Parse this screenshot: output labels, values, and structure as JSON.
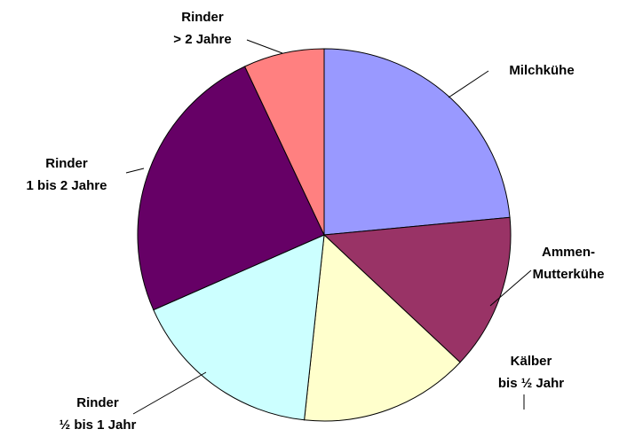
{
  "chart_data": {
    "type": "pie",
    "categories": [
      [
        "Milchkühe"
      ],
      [
        "Ammen-",
        "Mutterkühe"
      ],
      [
        "Kälber",
        "bis ½ Jahr"
      ],
      [
        "Rinder",
        "½ bis 1 Jahr"
      ],
      [
        "Rinder",
        "1 bis 2 Jahre"
      ],
      [
        "Rinder",
        "> 2 Jahre"
      ]
    ],
    "values": [
      23.5,
      13.5,
      14.7,
      16.7,
      24.6,
      7.0
    ],
    "colors": [
      "#9999ff",
      "#993366",
      "#ffffcc",
      "#ccffff",
      "#660066",
      "#ff8080"
    ]
  }
}
